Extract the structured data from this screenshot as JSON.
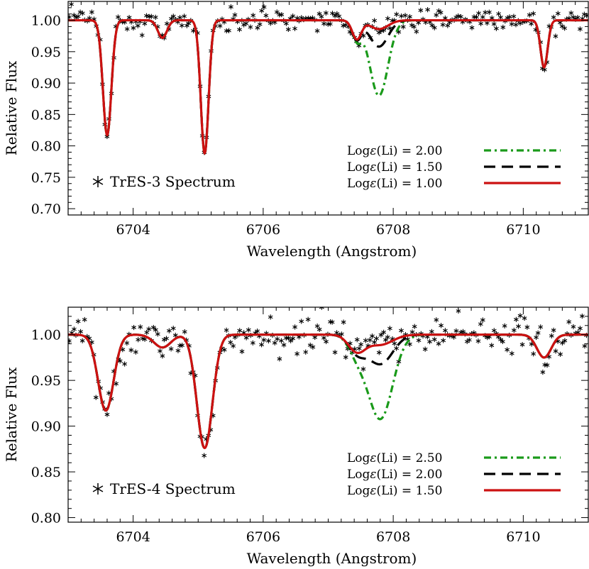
{
  "colors": {
    "observed": "#000000",
    "green": "#1a9a1a",
    "black": "#000000",
    "red": "#cc1111"
  },
  "chart_data": [
    {
      "type": "line",
      "id": "tres3",
      "xlabel": "Wavelength (Angstrom)",
      "ylabel": "Relative Flux",
      "xlim": [
        6703.0,
        6711.0
      ],
      "ylim": [
        0.69,
        1.03
      ],
      "xticks": [
        6704,
        6706,
        6708,
        6710
      ],
      "xtick_labels": [
        "6704",
        "6706",
        "6708",
        "6710"
      ],
      "yticks": [
        0.7,
        0.75,
        0.8,
        0.85,
        0.9,
        0.95,
        1.0
      ],
      "ytick_labels": [
        "0.70",
        "0.75",
        "0.80",
        "0.85",
        "0.90",
        "0.95",
        "1.00"
      ],
      "star_label": "TrES-3 Spectrum",
      "observed_marker": "asterisk",
      "observed_noise": 0.009,
      "lines": [
        {
          "center": 6703.6,
          "depth": 0.183,
          "sigma": 0.065
        },
        {
          "center": 6704.45,
          "depth": 0.028,
          "sigma": 0.07
        },
        {
          "center": 6705.1,
          "depth": 0.212,
          "sigma": 0.06
        },
        {
          "center": 6707.44,
          "depth": 0.03,
          "sigma": 0.07
        },
        {
          "center": 6710.32,
          "depth": 0.075,
          "sigma": 0.055
        }
      ],
      "li_line": {
        "center": 6707.78,
        "sigma": 0.14
      },
      "series": [
        {
          "name": "Logε(Li) = 2.00",
          "li_depth": 0.12,
          "color": "green",
          "style": "dashdot"
        },
        {
          "name": "Logε(Li) = 1.50",
          "li_depth": 0.042,
          "color": "black",
          "style": "dash"
        },
        {
          "name": "Logε(Li) = 1.00",
          "li_depth": 0.014,
          "color": "red",
          "style": "solid"
        }
      ],
      "legend": [
        {
          "prefix": "Log",
          "sym": "ε",
          "suffix": "(Li) = 2.00",
          "color": "green",
          "style": "dashdot"
        },
        {
          "prefix": "Log",
          "sym": "ε",
          "suffix": "(Li) = 1.50",
          "color": "black",
          "style": "dash"
        },
        {
          "prefix": "Log",
          "sym": "ε",
          "suffix": "(Li) = 1.00",
          "color": "red",
          "style": "solid"
        }
      ],
      "legend_placement": "bottom-right",
      "grid": false
    },
    {
      "type": "line",
      "id": "tres4",
      "xlabel": "Wavelength (Angstrom)",
      "ylabel": "Relative Flux",
      "xlim": [
        6703.0,
        6711.0
      ],
      "ylim": [
        0.795,
        1.03
      ],
      "xticks": [
        6704,
        6706,
        6708,
        6710
      ],
      "xtick_labels": [
        "6704",
        "6706",
        "6708",
        "6710"
      ],
      "yticks": [
        0.8,
        0.85,
        0.9,
        0.95,
        1.0
      ],
      "ytick_labels": [
        "0.80",
        "0.85",
        "0.90",
        "0.95",
        "1.00"
      ],
      "star_label": "TrES-4 Spectrum",
      "observed_marker": "asterisk",
      "observed_noise": 0.011,
      "lines": [
        {
          "center": 6703.58,
          "depth": 0.083,
          "sigma": 0.12
        },
        {
          "center": 6704.45,
          "depth": 0.014,
          "sigma": 0.13
        },
        {
          "center": 6705.1,
          "depth": 0.124,
          "sigma": 0.12
        },
        {
          "center": 6707.44,
          "depth": 0.018,
          "sigma": 0.13
        },
        {
          "center": 6710.32,
          "depth": 0.025,
          "sigma": 0.11
        }
      ],
      "li_line": {
        "center": 6707.8,
        "sigma": 0.19
      },
      "series": [
        {
          "name": "Logε(Li) = 2.50",
          "li_depth": 0.092,
          "color": "green",
          "style": "dashdot"
        },
        {
          "name": "Logε(Li) = 2.00",
          "li_depth": 0.032,
          "color": "black",
          "style": "dash"
        },
        {
          "name": "Logε(Li) = 1.50",
          "li_depth": 0.011,
          "color": "red",
          "style": "solid"
        }
      ],
      "legend": [
        {
          "prefix": "Log",
          "sym": "ε",
          "suffix": "(Li) = 2.50",
          "color": "green",
          "style": "dashdot"
        },
        {
          "prefix": "Log",
          "sym": "ε",
          "suffix": "(Li) = 2.00",
          "color": "black",
          "style": "dash"
        },
        {
          "prefix": "Log",
          "sym": "ε",
          "suffix": "(Li) = 1.50",
          "color": "red",
          "style": "solid"
        }
      ],
      "legend_placement": "bottom-right",
      "grid": false
    }
  ]
}
